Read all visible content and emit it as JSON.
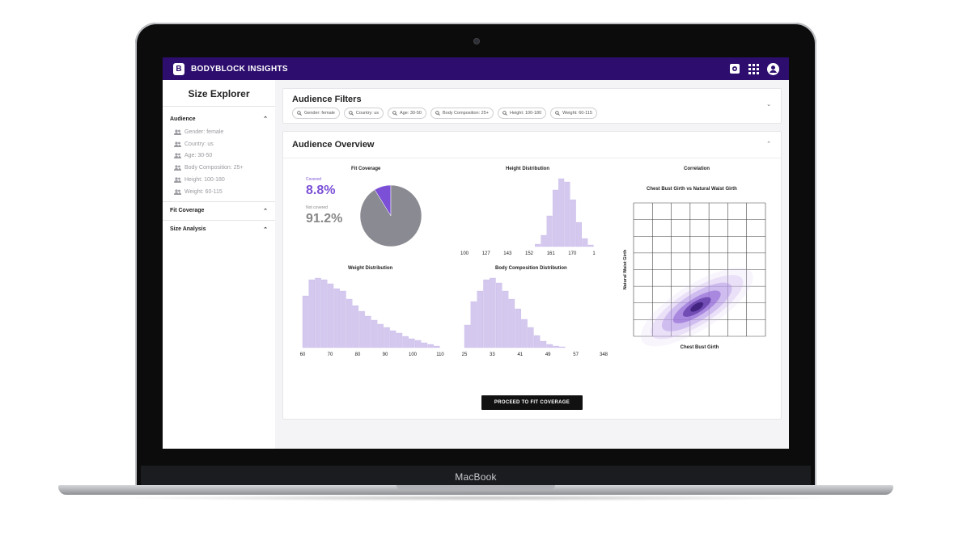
{
  "device": {
    "brand": "MacBook"
  },
  "app": {
    "title": "BODYBLOCK INSIGHTS",
    "logo_letter": "B",
    "icons": [
      "settings-icon",
      "apps-grid-icon",
      "account-icon"
    ]
  },
  "sidebar": {
    "title": "Size Explorer",
    "sections": [
      {
        "label": "Audience",
        "expanded": true,
        "items": [
          "Gender: female",
          "Country: us",
          "Age: 30-50",
          "Body Composition: 25+",
          "Height: 100-180",
          "Weight: 60-115"
        ]
      },
      {
        "label": "Fit Coverage",
        "expanded": true,
        "items": []
      },
      {
        "label": "Size Analysis",
        "expanded": true,
        "items": []
      }
    ]
  },
  "filters": {
    "title": "Audience Filters",
    "chips": [
      "Gender: female",
      "Country: us",
      "Age: 30-50",
      "Body Composition: 25+",
      "Height: 100-180",
      "Weight: 60-115"
    ]
  },
  "overview": {
    "title": "Audience Overview",
    "fit_coverage": {
      "title": "Fit Coverage",
      "covered_label": "Covered",
      "covered_value": "8.8%",
      "not_covered_label": "Not covered",
      "not_covered_value": "91.2%",
      "covered_color": "#7b4fd6",
      "not_covered_color": "#8a8a92"
    },
    "proceed_button": "PROCEED TO FIT COVERAGE"
  },
  "colors": {
    "accent": "#2d0e6e",
    "bar": "#d4c8ee",
    "bar_border": "#c2b2e6"
  },
  "chart_data": [
    {
      "type": "pie",
      "title": "Fit Coverage",
      "labels": [
        "Covered",
        "Not covered"
      ],
      "values": [
        8.8,
        91.2
      ]
    },
    {
      "type": "bar",
      "title": "Height Distribution",
      "tick_labels": [
        "100",
        "127",
        "143",
        "152",
        "161",
        "170",
        "1"
      ],
      "values": [
        0,
        0,
        0,
        0,
        0,
        0,
        0,
        0,
        0,
        0,
        0,
        0,
        3,
        14,
        38,
        70,
        84,
        80,
        58,
        30,
        10,
        2
      ]
    },
    {
      "type": "bar",
      "title": "Weight Distribution",
      "tick_labels": [
        "60",
        "70",
        "80",
        "90",
        "100",
        "110"
      ],
      "values": [
        64,
        84,
        86,
        84,
        79,
        73,
        70,
        60,
        52,
        45,
        39,
        34,
        29,
        25,
        21,
        18,
        14,
        11,
        9,
        6,
        4,
        2
      ]
    },
    {
      "type": "bar",
      "title": "Body Composition Distribution",
      "tick_labels": [
        "25",
        "33",
        "41",
        "49",
        "57",
        "348"
      ],
      "values": [
        28,
        57,
        70,
        84,
        86,
        80,
        70,
        60,
        48,
        35,
        25,
        15,
        8,
        4,
        2,
        1,
        0,
        0,
        0,
        0,
        0,
        0
      ]
    },
    {
      "type": "scatter",
      "title": "Correlation",
      "subtitle": "Chest Bust Girth vs Natural Waist Girth",
      "xlabel": "Chest Bust Girth",
      "ylabel": "Natural Waist Girth",
      "grid": true
    }
  ]
}
